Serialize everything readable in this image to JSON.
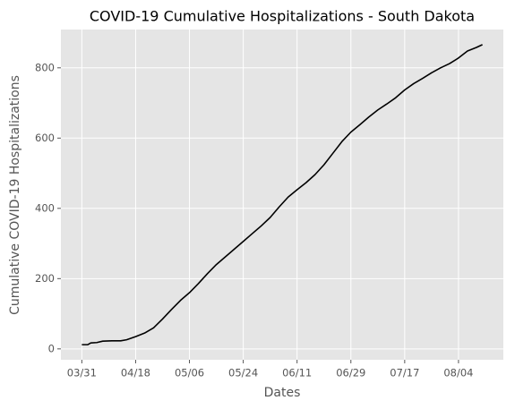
{
  "chart_data": {
    "type": "line",
    "title": "COVID-19 Cumulative Hospitalizations - South Dakota",
    "xlabel": "Dates",
    "ylabel": "Cumulative COVID-19 Hospitalizations",
    "x": [
      "03/31",
      "04/02",
      "04/03",
      "04/05",
      "04/07",
      "04/10",
      "04/13",
      "04/15",
      "04/18",
      "04/21",
      "04/24",
      "04/27",
      "04/30",
      "05/03",
      "05/06",
      "05/09",
      "05/12",
      "05/15",
      "05/18",
      "05/21",
      "05/24",
      "05/27",
      "05/30",
      "06/02",
      "06/05",
      "06/08",
      "06/11",
      "06/14",
      "06/17",
      "06/20",
      "06/23",
      "06/26",
      "06/29",
      "07/02",
      "07/05",
      "07/08",
      "07/11",
      "07/14",
      "07/17",
      "07/20",
      "07/23",
      "07/26",
      "07/29",
      "08/01",
      "08/04",
      "08/07",
      "08/10",
      "08/12"
    ],
    "series": [
      {
        "name": "Hospitalizations",
        "color": "#000000",
        "values": [
          12,
          12,
          17,
          18,
          22,
          23,
          23,
          26,
          35,
          45,
          60,
          85,
          112,
          138,
          160,
          186,
          214,
          240,
          262,
          284,
          306,
          328,
          350,
          374,
          404,
          432,
          453,
          473,
          496,
          524,
          557,
          590,
          617,
          638,
          660,
          680,
          697,
          715,
          737,
          755,
          770,
          786,
          800,
          812,
          828,
          848,
          858,
          866
        ]
      }
    ],
    "xlim": [
      "03/24",
      "08/19"
    ],
    "xticks": [
      "03/31",
      "04/18",
      "05/06",
      "05/24",
      "06/11",
      "06/29",
      "07/17",
      "08/04"
    ],
    "ylim": [
      -31,
      909
    ],
    "yticks": [
      0,
      200,
      400,
      600,
      800
    ],
    "grid": true
  }
}
